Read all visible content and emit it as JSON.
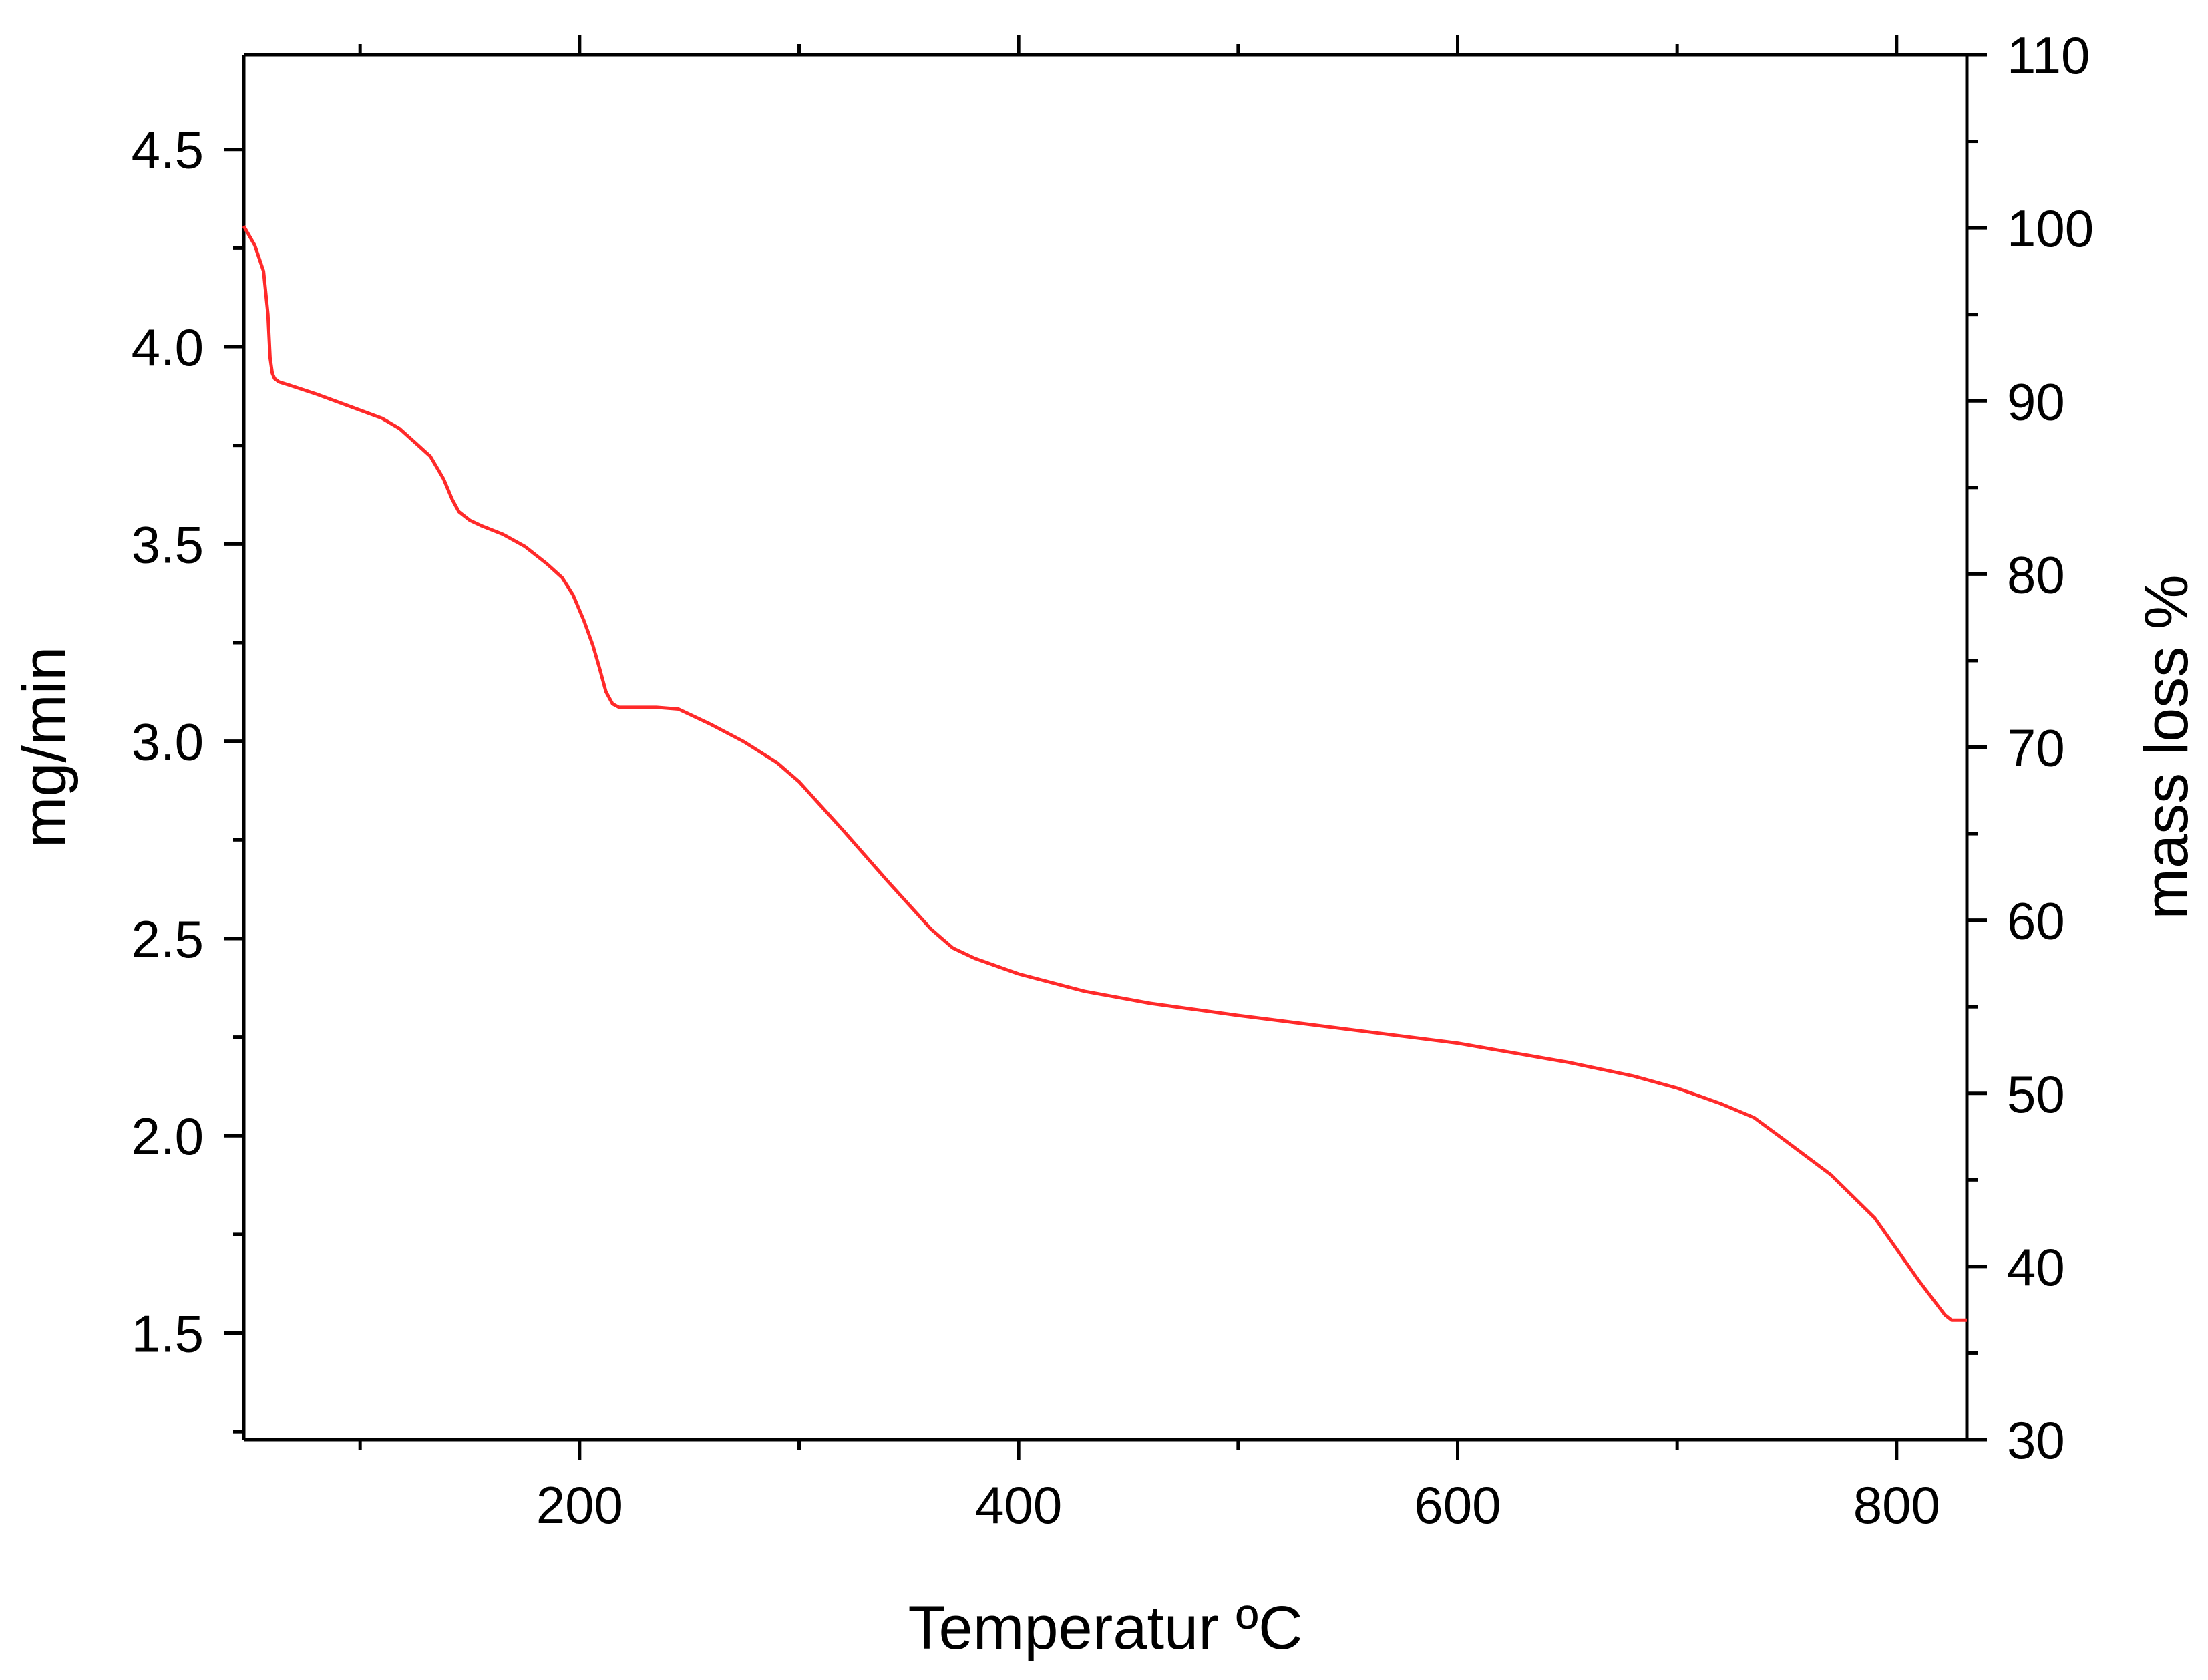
{
  "chart_data": {
    "type": "line",
    "title": "",
    "xlabel": "Temperatur ºC",
    "ylabel_left": "mg/min",
    "ylabel_right": "mass loss %",
    "xlim": [
      47,
      832
    ],
    "ylim_left": [
      1.23,
      4.74
    ],
    "ylim_right": [
      30,
      110
    ],
    "x_ticks": [
      200,
      400,
      600,
      800
    ],
    "x_minor_ticks": [
      100,
      300,
      500,
      700
    ],
    "y_left_ticks": [
      "1.5",
      "2.0",
      "2.5",
      "3.0",
      "3.5",
      "4.0",
      "4.5"
    ],
    "y_right_ticks": [
      30,
      40,
      50,
      60,
      70,
      80,
      90,
      100,
      110
    ],
    "grid": false,
    "legend": "none",
    "series": [
      {
        "axis": "right",
        "color": "#ff2a2a",
        "x": [
          47,
          52,
          56,
          58,
          59,
          60,
          61,
          62,
          63,
          68,
          80,
          95,
          110,
          118,
          125,
          132,
          138,
          142,
          145,
          150,
          155,
          165,
          175,
          185,
          192,
          197,
          202,
          206,
          209,
          212,
          215,
          218,
          222,
          235,
          245,
          260,
          275,
          290,
          300,
          320,
          340,
          360,
          370,
          380,
          400,
          430,
          460,
          500,
          550,
          600,
          650,
          680,
          700,
          720,
          735,
          750,
          770,
          790,
          810,
          822,
          825,
          832
        ],
        "y": [
          100.1,
          99.0,
          97.5,
          95.0,
          92.5,
          91.6,
          91.3,
          91.2,
          91.1,
          90.9,
          90.4,
          89.7,
          89.0,
          88.4,
          87.6,
          86.8,
          85.5,
          84.3,
          83.6,
          83.1,
          82.8,
          82.3,
          81.6,
          80.6,
          79.8,
          78.8,
          77.3,
          75.9,
          74.6,
          73.2,
          72.5,
          72.3,
          72.3,
          72.3,
          72.2,
          71.3,
          70.3,
          69.1,
          68.0,
          65.2,
          62.3,
          59.5,
          58.4,
          57.8,
          56.9,
          55.9,
          55.2,
          54.5,
          53.7,
          52.9,
          51.8,
          51.0,
          50.3,
          49.4,
          48.6,
          47.2,
          45.3,
          42.8,
          39.2,
          37.2,
          36.9,
          36.9
        ]
      }
    ]
  }
}
